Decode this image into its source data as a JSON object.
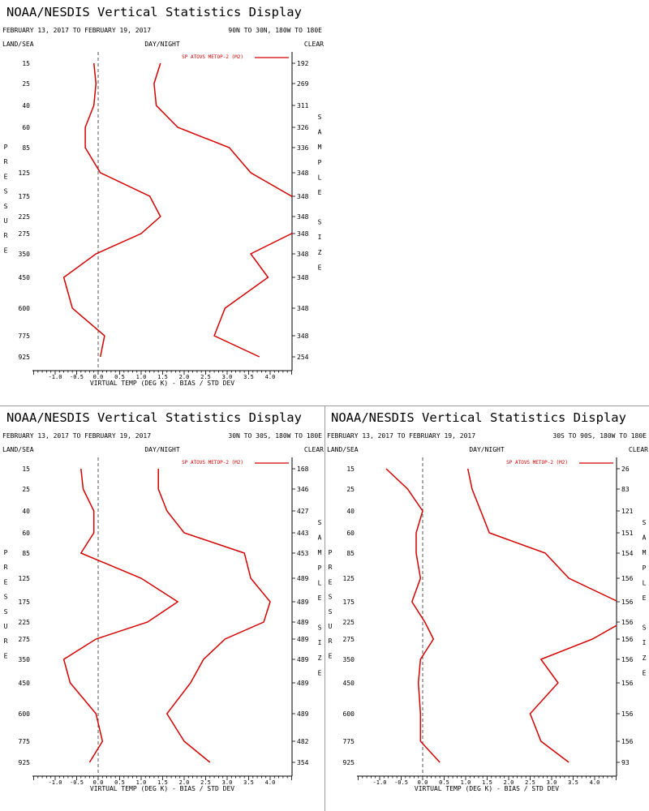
{
  "chart_data": [
    {
      "type": "line",
      "title": "NOAA/NESDIS Vertical Statistics Display",
      "date_range": "FEBRUARY 13, 2017 TO FEBRUARY 19, 2017",
      "region": "90N TO 30N, 180W TO 180E",
      "left_header": "LAND/SEA",
      "center_header": "DAY/NIGHT",
      "right_header": "CLEAR",
      "ylabel": "PRESSURE",
      "y2label": "SAMPLE SIZE",
      "xlabel": "VIRTUAL TEMP (DEG K) - BIAS / STD DEV",
      "xlim": [
        -1.5,
        4.5
      ],
      "x_ticks": [
        -1.0,
        -0.5,
        0.0,
        0.5,
        1.0,
        1.5,
        2.0,
        2.5,
        3.0,
        3.5,
        4.0
      ],
      "x_tick_labels": [
        "-1.0",
        "-0.5",
        "0.0",
        "0.5",
        "1.0",
        "1.5",
        "2.0",
        "2.5",
        "3.0",
        "3.5",
        "4.0"
      ],
      "legend": "SP ATOVS METOP-2 (M2)",
      "pressure_levels": [
        "15",
        "25",
        "40",
        "60",
        "85",
        "125",
        "175",
        "225",
        "275",
        "350",
        "450",
        "600",
        "775",
        "925"
      ],
      "sample_size": [
        "192",
        "269",
        "311",
        "326",
        "336",
        "348",
        "348",
        "348",
        "348",
        "348",
        "348",
        "348",
        "348",
        "254"
      ],
      "series": [
        {
          "name": "bias",
          "values": [
            -0.1,
            -0.05,
            -0.1,
            -0.3,
            -0.3,
            0.05,
            1.2,
            1.45,
            1.0,
            -0.05,
            -0.8,
            -0.6,
            0.15,
            0.05
          ]
        },
        {
          "name": "std_dev",
          "values": [
            1.45,
            1.3,
            1.35,
            1.85,
            3.05,
            3.55,
            4.5,
            4.7,
            4.5,
            3.55,
            3.95,
            2.95,
            2.7,
            3.75
          ]
        }
      ]
    },
    {
      "type": "line",
      "title": "NOAA/NESDIS Vertical Statistics Display",
      "date_range": "FEBRUARY 13, 2017 TO FEBRUARY 19, 2017",
      "region": "30N TO 30S, 180W TO 180E",
      "left_header": "LAND/SEA",
      "center_header": "DAY/NIGHT",
      "right_header": "CLEAR",
      "ylabel": "PRESSURE",
      "y2label": "SAMPLE SIZE",
      "xlabel": "VIRTUAL TEMP (DEG K) - BIAS / STD DEV",
      "xlim": [
        -1.5,
        4.5
      ],
      "x_ticks": [
        -1.0,
        -0.5,
        0.0,
        0.5,
        1.0,
        1.5,
        2.0,
        2.5,
        3.0,
        3.5,
        4.0
      ],
      "x_tick_labels": [
        "-1.0",
        "-0.5",
        "0.0",
        "0.5",
        "1.0",
        "1.5",
        "2.0",
        "2.5",
        "3.0",
        "3.5",
        "4.0"
      ],
      "legend": "SP ATOVS METOP-2 (M2)",
      "pressure_levels": [
        "15",
        "25",
        "40",
        "60",
        "85",
        "125",
        "175",
        "225",
        "275",
        "350",
        "450",
        "600",
        "775",
        "925"
      ],
      "sample_size": [
        "168",
        "346",
        "427",
        "443",
        "453",
        "489",
        "489",
        "489",
        "489",
        "489",
        "489",
        "489",
        "482",
        "354"
      ],
      "series": [
        {
          "name": "bias",
          "values": [
            -0.4,
            -0.35,
            -0.1,
            -0.1,
            -0.4,
            1.0,
            1.85,
            1.15,
            -0.05,
            -0.8,
            -0.65,
            -0.05,
            0.1,
            -0.2
          ]
        },
        {
          "name": "std_dev",
          "values": [
            1.4,
            1.4,
            1.6,
            2.0,
            3.4,
            3.55,
            4.0,
            3.85,
            2.95,
            2.45,
            2.15,
            1.6,
            2.0,
            2.6
          ]
        }
      ]
    },
    {
      "type": "line",
      "title": "NOAA/NESDIS Vertical Statistics Display",
      "date_range": "FEBRUARY 13, 2017 TO FEBRUARY 19, 2017",
      "region": "30S TO 90S, 180W TO 180E",
      "left_header": "LAND/SEA",
      "center_header": "DAY/NIGHT",
      "right_header": "CLEAR",
      "ylabel": "PRESSURE",
      "y2label": "SAMPLE SIZE",
      "xlabel": "VIRTUAL TEMP (DEG K) - BIAS / STD DEV",
      "xlim": [
        -1.5,
        4.5
      ],
      "x_ticks": [
        -1.0,
        -0.5,
        0.0,
        0.5,
        1.0,
        1.5,
        2.0,
        2.5,
        3.0,
        3.5,
        4.0
      ],
      "x_tick_labels": [
        "-1.0",
        "-0.5",
        "0.0",
        "0.5",
        "1.0",
        "1.5",
        "2.0",
        "2.5",
        "3.0",
        "3.5",
        "4.0"
      ],
      "legend": "SP ATOVS METOP-2 (M2)",
      "pressure_levels": [
        "15",
        "25",
        "40",
        "60",
        "85",
        "125",
        "175",
        "225",
        "275",
        "350",
        "450",
        "600",
        "775",
        "925"
      ],
      "sample_size": [
        "26",
        "83",
        "121",
        "151",
        "154",
        "156",
        "156",
        "156",
        "156",
        "156",
        "156",
        "156",
        "156",
        "93"
      ],
      "series": [
        {
          "name": "bias",
          "values": [
            -0.85,
            -0.35,
            0.0,
            -0.15,
            -0.15,
            -0.05,
            -0.25,
            0.05,
            0.25,
            -0.05,
            -0.1,
            -0.05,
            -0.05,
            0.4
          ]
        },
        {
          "name": "std_dev",
          "values": [
            1.05,
            1.15,
            1.35,
            1.55,
            2.85,
            3.4,
            4.55,
            4.65,
            3.95,
            2.75,
            3.15,
            2.5,
            2.75,
            3.4
          ]
        }
      ]
    }
  ]
}
